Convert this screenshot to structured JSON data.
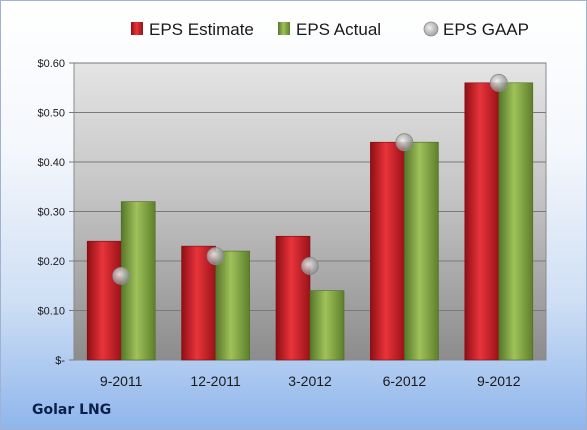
{
  "company_name": "Golar LNG",
  "chart_data": {
    "type": "bar",
    "categories": [
      "9-2011",
      "12-2011",
      "3-2012",
      "6-2012",
      "9-2012"
    ],
    "series": [
      {
        "name": "EPS Estimate",
        "type": "bar",
        "color": "#c8202a",
        "values": [
          0.24,
          0.23,
          0.25,
          0.44,
          0.56
        ]
      },
      {
        "name": "EPS Actual",
        "type": "bar",
        "color": "#80a640",
        "values": [
          0.32,
          0.22,
          0.14,
          0.44,
          0.56
        ]
      },
      {
        "name": "EPS GAAP",
        "type": "scatter",
        "color": "#a9a9a9",
        "values": [
          0.17,
          0.21,
          0.19,
          0.44,
          0.56
        ]
      }
    ],
    "ylim": [
      0,
      0.6
    ],
    "yticks": [
      0,
      0.1,
      0.2,
      0.3,
      0.4,
      0.5,
      0.6
    ],
    "ytick_labels": [
      "$-",
      "$0.10",
      "$0.20",
      "$0.30",
      "$0.40",
      "$0.50",
      "$0.60"
    ],
    "legend_position": "top",
    "grid": true
  }
}
